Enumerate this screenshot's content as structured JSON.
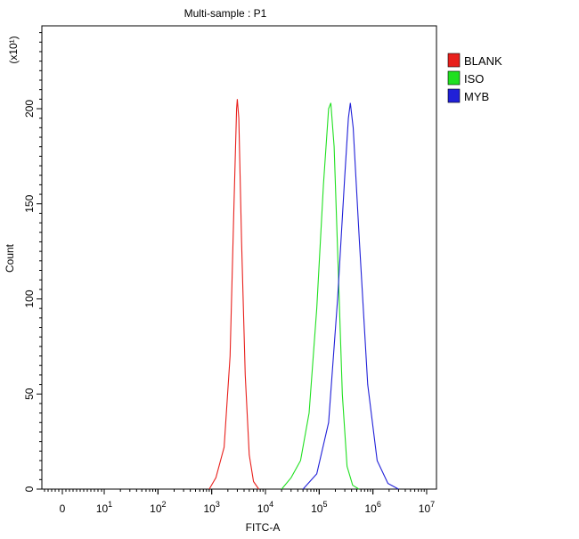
{
  "chart_data": {
    "type": "line",
    "title": "Multi-sample : P1",
    "xlabel": "FITC-A",
    "ylabel": "Count",
    "y_multiplier_label": "(x10¹)",
    "x_scale": "log",
    "x_ticks": [
      {
        "value": 0,
        "base": "0",
        "exp": ""
      },
      {
        "value": 10,
        "base": "10",
        "exp": "1"
      },
      {
        "value": 100,
        "base": "10",
        "exp": "2"
      },
      {
        "value": 1000,
        "base": "10",
        "exp": "3"
      },
      {
        "value": 10000,
        "base": "10",
        "exp": "4"
      },
      {
        "value": 100000,
        "base": "10",
        "exp": "5"
      },
      {
        "value": 1000000,
        "base": "10",
        "exp": "6"
      },
      {
        "value": 10000000,
        "base": "10",
        "exp": "7"
      }
    ],
    "y_ticks": [
      "0",
      "50",
      "100",
      "150",
      "200"
    ],
    "ylim": [
      0,
      245
    ],
    "legend_position": "top-right",
    "series": [
      {
        "name": "BLANK",
        "color": "#e8201c",
        "points": [
          [
            900,
            0
          ],
          [
            1200,
            6
          ],
          [
            1700,
            22
          ],
          [
            2200,
            70
          ],
          [
            2600,
            150
          ],
          [
            2900,
            200
          ],
          [
            3000,
            205
          ],
          [
            3200,
            195
          ],
          [
            3600,
            130
          ],
          [
            4200,
            60
          ],
          [
            5000,
            18
          ],
          [
            6000,
            4
          ],
          [
            7500,
            0
          ]
        ]
      },
      {
        "name": "ISO",
        "color": "#20e020",
        "points": [
          [
            20000,
            0
          ],
          [
            30000,
            6
          ],
          [
            45000,
            15
          ],
          [
            65000,
            40
          ],
          [
            90000,
            95
          ],
          [
            120000,
            160
          ],
          [
            150000,
            200
          ],
          [
            165000,
            203
          ],
          [
            190000,
            180
          ],
          [
            230000,
            110
          ],
          [
            270000,
            50
          ],
          [
            330000,
            12
          ],
          [
            420000,
            2
          ],
          [
            550000,
            0
          ]
        ]
      },
      {
        "name": "MYB",
        "color": "#2020d8",
        "points": [
          [
            50000,
            0
          ],
          [
            90000,
            8
          ],
          [
            150000,
            35
          ],
          [
            220000,
            100
          ],
          [
            300000,
            165
          ],
          [
            350000,
            195
          ],
          [
            380000,
            203
          ],
          [
            430000,
            190
          ],
          [
            560000,
            130
          ],
          [
            800000,
            55
          ],
          [
            1200000,
            15
          ],
          [
            1900000,
            3
          ],
          [
            3000000,
            0
          ]
        ]
      }
    ]
  }
}
